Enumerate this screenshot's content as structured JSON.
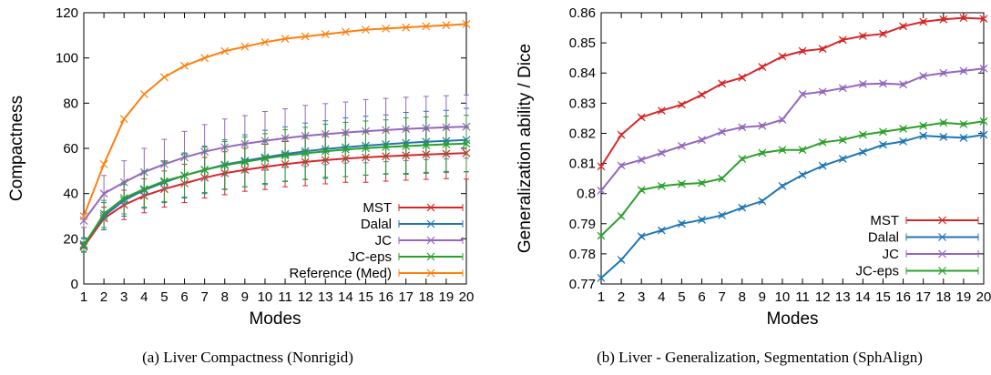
{
  "chart_data": [
    {
      "type": "line",
      "caption": "(a)  Liver Compactness (Nonrigid)",
      "xlabel": "Modes",
      "ylabel": "Compactness",
      "x": [
        1,
        2,
        3,
        4,
        5,
        6,
        7,
        8,
        9,
        10,
        11,
        12,
        13,
        14,
        15,
        16,
        17,
        18,
        19,
        20
      ],
      "xlim": [
        1,
        20
      ],
      "ylim": [
        0,
        120
      ],
      "yticks": [
        0,
        20,
        40,
        60,
        80,
        100,
        120
      ],
      "legend_position": "bottom-right",
      "grid": false,
      "series": [
        {
          "name": "MST",
          "color": "#d62728",
          "values": [
            16.5,
            29,
            35,
            39,
            42,
            44.5,
            47,
            49,
            50.5,
            51.8,
            53,
            54,
            54.8,
            55.5,
            56,
            56.5,
            56.9,
            57.3,
            57.6,
            57.9
          ],
          "errors": [
            2,
            5,
            6.5,
            7.5,
            8,
            8.5,
            9,
            9.5,
            9.5,
            10,
            10,
            10.5,
            10.5,
            10.5,
            11,
            11,
            11,
            11,
            11,
            11.5
          ]
        },
        {
          "name": "Dalal",
          "color": "#1f77b4",
          "values": [
            17.5,
            30,
            37,
            41.5,
            45,
            48,
            50.5,
            52.8,
            54.5,
            56,
            57.5,
            58.7,
            59.7,
            60.5,
            61.2,
            61.8,
            62.4,
            62.9,
            63.3,
            63.7
          ],
          "errors": [
            3,
            6,
            7,
            8,
            9,
            10,
            10.5,
            11,
            11.5,
            12,
            12,
            12.5,
            12.5,
            13,
            13,
            13,
            13.5,
            13.5,
            13.5,
            14
          ]
        },
        {
          "name": "JC",
          "color": "#9467bd",
          "values": [
            28,
            40,
            45,
            49.5,
            53,
            56,
            58.5,
            60.5,
            62,
            63.3,
            64.5,
            65.5,
            66.3,
            67,
            67.6,
            68.1,
            68.6,
            69,
            69.3,
            69.6
          ],
          "errors": [
            3,
            8,
            9.5,
            10.5,
            11,
            11.5,
            12,
            12.5,
            12.5,
            13,
            13,
            13.5,
            13.5,
            13.5,
            14,
            14,
            14,
            14,
            14,
            14
          ]
        },
        {
          "name": "JC-eps",
          "color": "#2ca02c",
          "values": [
            17,
            31,
            38,
            42,
            45.5,
            48,
            50.5,
            52.5,
            54,
            55.5,
            56.8,
            57.8,
            58.7,
            59.5,
            60.1,
            60.6,
            61,
            61.4,
            61.8,
            62.1
          ],
          "errors": [
            3,
            6,
            7,
            8,
            9,
            9.5,
            10,
            10.5,
            11,
            11,
            11.5,
            11.5,
            12,
            12,
            12,
            12,
            12.5,
            12.5,
            12.5,
            12.5
          ]
        },
        {
          "name": "Reference (Med)",
          "color": "#ff7f0e",
          "values": [
            30,
            53,
            73,
            84,
            91.5,
            96.5,
            100,
            103,
            105,
            107,
            108.5,
            109.5,
            110.5,
            111.5,
            112.5,
            113,
            113.5,
            114,
            114.5,
            115
          ],
          "errors": [
            0,
            0,
            0,
            0,
            0,
            0,
            0,
            0,
            0,
            0,
            0,
            0,
            0,
            0,
            0,
            0,
            0,
            0,
            0,
            0
          ]
        }
      ]
    },
    {
      "type": "line",
      "caption": "(b)  Liver - Generalization, Segmentation (SphAlign)",
      "xlabel": "Modes",
      "ylabel": "Generalization ability / Dice",
      "x": [
        1,
        2,
        3,
        4,
        5,
        6,
        7,
        8,
        9,
        10,
        11,
        12,
        13,
        14,
        15,
        16,
        17,
        18,
        19,
        20
      ],
      "xlim": [
        1,
        20
      ],
      "ylim": [
        0.77,
        0.86
      ],
      "yticks": [
        0.77,
        0.78,
        0.79,
        0.8,
        0.81,
        0.82,
        0.83,
        0.84,
        0.85,
        0.86
      ],
      "ytick_labels": [
        "0.77",
        "0.78",
        "0.79",
        "0.8",
        "0.81",
        "0.82",
        "0.83",
        "0.84",
        "0.85",
        "0.86"
      ],
      "legend_position": "bottom-right",
      "grid": false,
      "series": [
        {
          "name": "MST",
          "color": "#d62728",
          "values": [
            0.809,
            0.8195,
            0.8253,
            0.8275,
            0.8295,
            0.8328,
            0.8365,
            0.8385,
            0.842,
            0.8455,
            0.8473,
            0.848,
            0.851,
            0.8523,
            0.853,
            0.8555,
            0.857,
            0.8578,
            0.8583,
            0.858
          ],
          "errors": [
            0.0005,
            0.0005,
            0.0005,
            0.0005,
            0.0005,
            0.0005,
            0.0005,
            0.0005,
            0.0005,
            0.0005,
            0.0005,
            0.0005,
            0.0005,
            0.0005,
            0.0005,
            0.0005,
            0.0005,
            0.0005,
            0.0005,
            0.0005
          ]
        },
        {
          "name": "Dalal",
          "color": "#1f77b4",
          "values": [
            0.772,
            0.778,
            0.7858,
            0.7878,
            0.79,
            0.7913,
            0.7928,
            0.7953,
            0.7975,
            0.8025,
            0.8062,
            0.8092,
            0.8115,
            0.8138,
            0.8162,
            0.8173,
            0.8192,
            0.8188,
            0.8185,
            0.8195
          ],
          "errors": [
            0.0005,
            0.0005,
            0.0005,
            0.0005,
            0.0005,
            0.0005,
            0.0005,
            0.0005,
            0.0005,
            0.0005,
            0.0005,
            0.0005,
            0.0005,
            0.0005,
            0.0005,
            0.0005,
            0.0005,
            0.0005,
            0.0005,
            0.0005
          ]
        },
        {
          "name": "JC",
          "color": "#9467bd",
          "values": [
            0.801,
            0.8093,
            0.8112,
            0.8135,
            0.8158,
            0.8178,
            0.8205,
            0.822,
            0.8225,
            0.8245,
            0.833,
            0.8338,
            0.835,
            0.8363,
            0.8365,
            0.8362,
            0.839,
            0.84,
            0.8407,
            0.8415
          ],
          "errors": [
            0.0005,
            0.0005,
            0.0005,
            0.0005,
            0.0005,
            0.0005,
            0.0005,
            0.0005,
            0.0005,
            0.0005,
            0.0005,
            0.0005,
            0.0005,
            0.0005,
            0.0005,
            0.0005,
            0.0005,
            0.0005,
            0.0005,
            0.0005
          ]
        },
        {
          "name": "JC-eps",
          "color": "#2ca02c",
          "values": [
            0.786,
            0.7925,
            0.8012,
            0.8025,
            0.8032,
            0.8035,
            0.805,
            0.8115,
            0.8135,
            0.8145,
            0.8145,
            0.817,
            0.8178,
            0.8195,
            0.8205,
            0.8215,
            0.8225,
            0.8235,
            0.823,
            0.824
          ],
          "errors": [
            0.0005,
            0.0005,
            0.0005,
            0.0005,
            0.0005,
            0.0005,
            0.0005,
            0.0005,
            0.0005,
            0.0005,
            0.0005,
            0.0005,
            0.0005,
            0.0005,
            0.0005,
            0.0005,
            0.0005,
            0.0005,
            0.0005,
            0.0005
          ]
        }
      ]
    }
  ]
}
